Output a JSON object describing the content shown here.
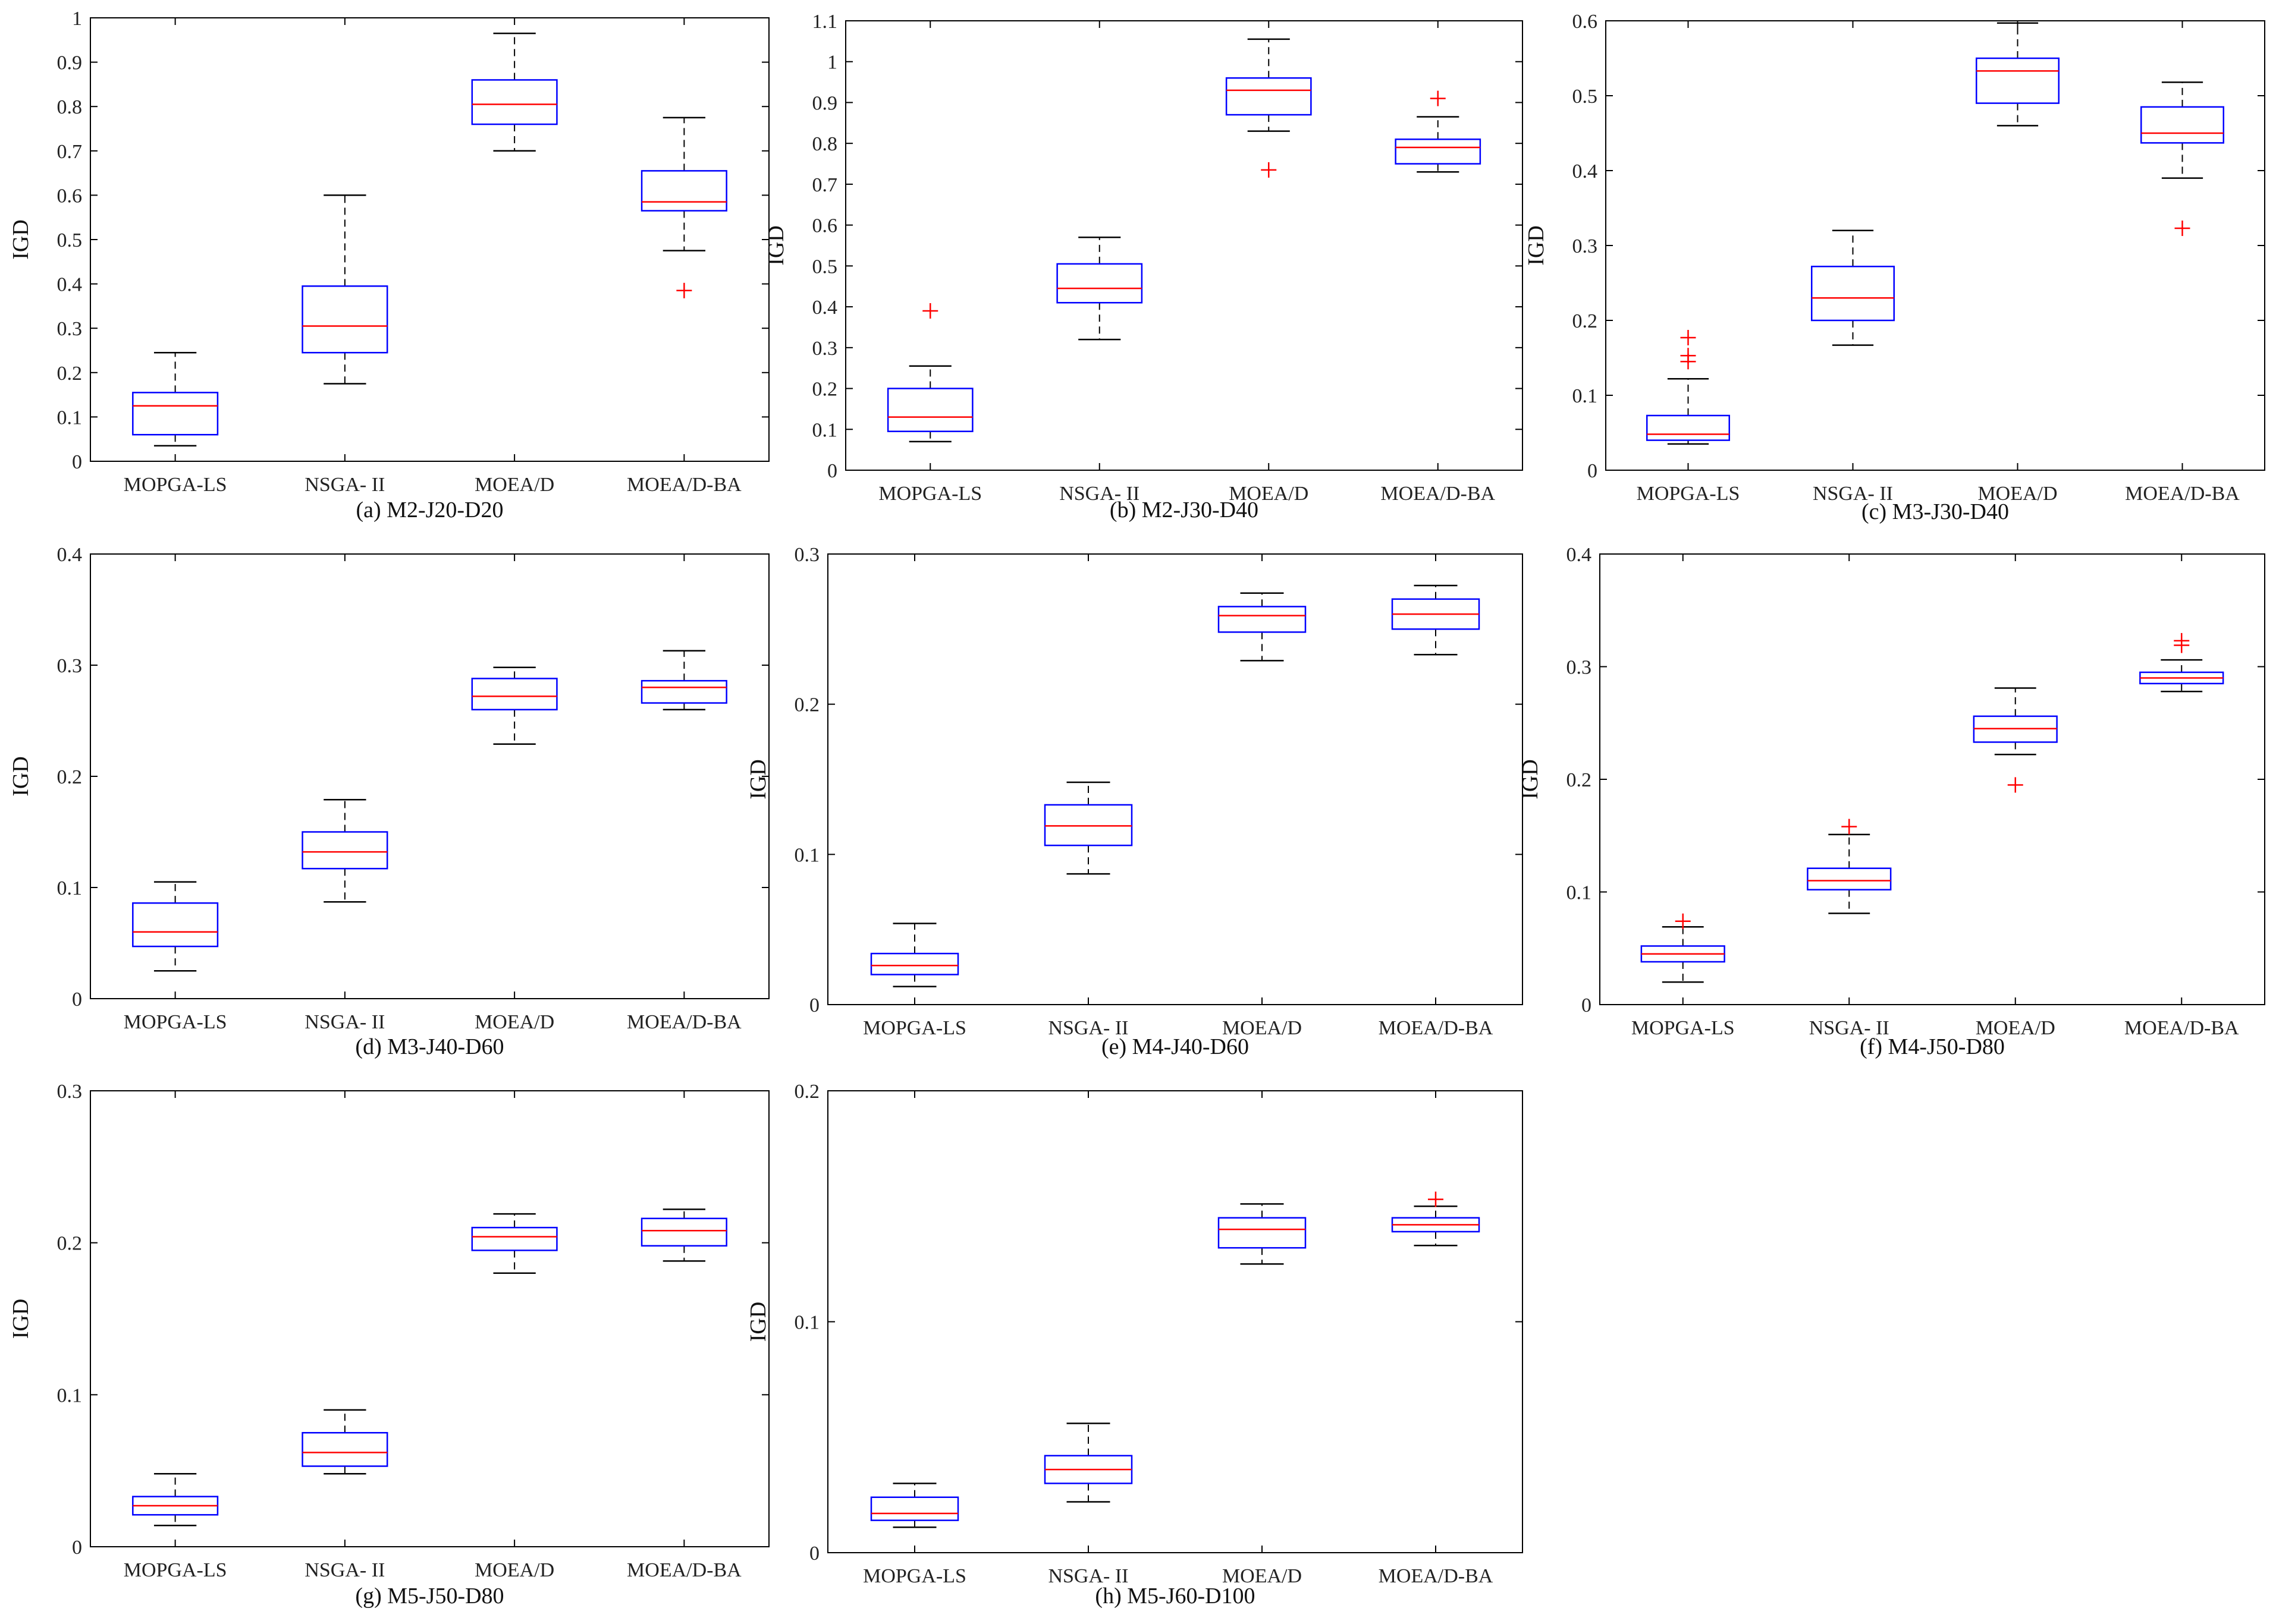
{
  "figure": {
    "ylabel": "IGD"
  },
  "colors": {
    "box": "#0000ff",
    "median": "#ff0000",
    "outlier": "#ff0000",
    "whisker": "#000000",
    "axis": "#000000"
  },
  "chart_data": [
    {
      "type": "boxplot",
      "caption": "(a)  M2-J20-D20",
      "ylabel": "IGD",
      "ylim": [
        0,
        1
      ],
      "yticks": [
        "0",
        "0.1",
        "0.2",
        "0.3",
        "0.4",
        "0.5",
        "0.6",
        "0.7",
        "0.8",
        "0.9",
        "1"
      ],
      "categories": [
        "MOPGA-LS",
        "NSGA- II",
        "MOEA/D",
        "MOEA/D-BA"
      ],
      "series": [
        {
          "name": "MOPGA-LS",
          "min": 0.035,
          "q1": 0.06,
          "median": 0.125,
          "q3": 0.155,
          "max": 0.245,
          "outliers": []
        },
        {
          "name": "NSGA- II",
          "min": 0.175,
          "q1": 0.245,
          "median": 0.305,
          "q3": 0.395,
          "max": 0.6,
          "outliers": []
        },
        {
          "name": "MOEA/D",
          "min": 0.7,
          "q1": 0.76,
          "median": 0.805,
          "q3": 0.86,
          "max": 0.965,
          "outliers": []
        },
        {
          "name": "MOEA/D-BA",
          "min": 0.475,
          "q1": 0.565,
          "median": 0.585,
          "q3": 0.655,
          "max": 0.775,
          "outliers": [
            0.385
          ]
        }
      ]
    },
    {
      "type": "boxplot",
      "caption": "(b)  M2-J30-D40",
      "ylabel": "IGD",
      "ylim": [
        0,
        1.1
      ],
      "yticks": [
        "0",
        "0.1",
        "0.2",
        "0.3",
        "0.4",
        "0.5",
        "0.6",
        "0.7",
        "0.8",
        "0.9",
        "1",
        "1.1"
      ],
      "categories": [
        "MOPGA-LS",
        "NSGA- II",
        "MOEA/D",
        "MOEA/D-BA"
      ],
      "series": [
        {
          "name": "MOPGA-LS",
          "min": 0.07,
          "q1": 0.095,
          "median": 0.13,
          "q3": 0.2,
          "max": 0.255,
          "outliers": [
            0.39
          ]
        },
        {
          "name": "NSGA- II",
          "min": 0.32,
          "q1": 0.41,
          "median": 0.445,
          "q3": 0.505,
          "max": 0.57,
          "outliers": []
        },
        {
          "name": "MOEA/D",
          "min": 0.83,
          "q1": 0.87,
          "median": 0.93,
          "q3": 0.96,
          "max": 1.055,
          "outliers": [
            0.735
          ]
        },
        {
          "name": "MOEA/D-BA",
          "min": 0.73,
          "q1": 0.75,
          "median": 0.79,
          "q3": 0.81,
          "max": 0.865,
          "outliers": [
            0.91
          ]
        }
      ]
    },
    {
      "type": "boxplot",
      "caption": "(c)  M3-J30-D40",
      "ylabel": "IGD",
      "ylim": [
        0,
        0.6
      ],
      "yticks": [
        "0",
        "0.1",
        "0.2",
        "0.3",
        "0.4",
        "0.5",
        "0.6"
      ],
      "categories": [
        "MOPGA-LS",
        "NSGA- II",
        "MOEA/D",
        "MOEA/D-BA"
      ],
      "series": [
        {
          "name": "MOPGA-LS",
          "min": 0.035,
          "q1": 0.04,
          "median": 0.048,
          "q3": 0.073,
          "max": 0.122,
          "outliers": [
            0.145,
            0.153,
            0.177
          ]
        },
        {
          "name": "NSGA- II",
          "min": 0.167,
          "q1": 0.2,
          "median": 0.23,
          "q3": 0.272,
          "max": 0.32,
          "outliers": []
        },
        {
          "name": "MOEA/D",
          "min": 0.46,
          "q1": 0.49,
          "median": 0.533,
          "q3": 0.55,
          "max": 0.597,
          "outliers": []
        },
        {
          "name": "MOEA/D-BA",
          "min": 0.39,
          "q1": 0.437,
          "median": 0.45,
          "q3": 0.485,
          "max": 0.518,
          "outliers": [
            0.323
          ]
        }
      ]
    },
    {
      "type": "boxplot",
      "caption": "(d)  M3-J40-D60",
      "ylabel": "IGD",
      "ylim": [
        0,
        0.4
      ],
      "yticks": [
        "0",
        "0.1",
        "0.2",
        "0.3",
        "0.4"
      ],
      "categories": [
        "MOPGA-LS",
        "NSGA- II",
        "MOEA/D",
        "MOEA/D-BA"
      ],
      "series": [
        {
          "name": "MOPGA-LS",
          "min": 0.025,
          "q1": 0.047,
          "median": 0.06,
          "q3": 0.086,
          "max": 0.105,
          "outliers": []
        },
        {
          "name": "NSGA- II",
          "min": 0.087,
          "q1": 0.117,
          "median": 0.132,
          "q3": 0.15,
          "max": 0.179,
          "outliers": []
        },
        {
          "name": "MOEA/D",
          "min": 0.229,
          "q1": 0.26,
          "median": 0.272,
          "q3": 0.288,
          "max": 0.298,
          "outliers": []
        },
        {
          "name": "MOEA/D-BA",
          "min": 0.26,
          "q1": 0.266,
          "median": 0.28,
          "q3": 0.286,
          "max": 0.313,
          "outliers": []
        }
      ]
    },
    {
      "type": "boxplot",
      "caption": "(e)  M4-J40-D60",
      "ylabel": "IGD",
      "ylim": [
        0,
        0.3
      ],
      "yticks": [
        "0",
        "0.1",
        "0.2",
        "0.3"
      ],
      "categories": [
        "MOPGA-LS",
        "NSGA- II",
        "MOEA/D",
        "MOEA/D-BA"
      ],
      "series": [
        {
          "name": "MOPGA-LS",
          "min": 0.012,
          "q1": 0.02,
          "median": 0.026,
          "q3": 0.034,
          "max": 0.054,
          "outliers": []
        },
        {
          "name": "NSGA- II",
          "min": 0.087,
          "q1": 0.106,
          "median": 0.119,
          "q3": 0.133,
          "max": 0.148,
          "outliers": []
        },
        {
          "name": "MOEA/D",
          "min": 0.229,
          "q1": 0.248,
          "median": 0.259,
          "q3": 0.265,
          "max": 0.274,
          "outliers": []
        },
        {
          "name": "MOEA/D-BA",
          "min": 0.233,
          "q1": 0.25,
          "median": 0.26,
          "q3": 0.27,
          "max": 0.279,
          "outliers": []
        }
      ]
    },
    {
      "type": "boxplot",
      "caption": "(f)  M4-J50-D80",
      "ylabel": "IGD",
      "ylim": [
        0,
        0.4
      ],
      "yticks": [
        "0",
        "0.1",
        "0.2",
        "0.3",
        "0.4"
      ],
      "categories": [
        "MOPGA-LS",
        "NSGA- II",
        "MOEA/D",
        "MOEA/D-BA"
      ],
      "series": [
        {
          "name": "MOPGA-LS",
          "min": 0.02,
          "q1": 0.038,
          "median": 0.045,
          "q3": 0.052,
          "max": 0.069,
          "outliers": [
            0.074
          ]
        },
        {
          "name": "NSGA- II",
          "min": 0.081,
          "q1": 0.102,
          "median": 0.11,
          "q3": 0.121,
          "max": 0.151,
          "outliers": [
            0.158
          ]
        },
        {
          "name": "MOEA/D",
          "min": 0.222,
          "q1": 0.233,
          "median": 0.245,
          "q3": 0.256,
          "max": 0.281,
          "outliers": [
            0.195
          ]
        },
        {
          "name": "MOEA/D-BA",
          "min": 0.278,
          "q1": 0.285,
          "median": 0.29,
          "q3": 0.295,
          "max": 0.306,
          "outliers": [
            0.319,
            0.323
          ]
        }
      ]
    },
    {
      "type": "boxplot",
      "caption": "(g)  M5-J50-D80",
      "ylabel": "IGD",
      "ylim": [
        0,
        0.3
      ],
      "yticks": [
        "0",
        "0.1",
        "0.2",
        "0.3"
      ],
      "categories": [
        "MOPGA-LS",
        "NSGA- II",
        "MOEA/D",
        "MOEA/D-BA"
      ],
      "series": [
        {
          "name": "MOPGA-LS",
          "min": 0.014,
          "q1": 0.021,
          "median": 0.027,
          "q3": 0.033,
          "max": 0.048,
          "outliers": []
        },
        {
          "name": "NSGA- II",
          "min": 0.048,
          "q1": 0.053,
          "median": 0.062,
          "q3": 0.075,
          "max": 0.09,
          "outliers": []
        },
        {
          "name": "MOEA/D",
          "min": 0.18,
          "q1": 0.195,
          "median": 0.204,
          "q3": 0.21,
          "max": 0.219,
          "outliers": []
        },
        {
          "name": "MOEA/D-BA",
          "min": 0.188,
          "q1": 0.198,
          "median": 0.208,
          "q3": 0.216,
          "max": 0.222,
          "outliers": []
        }
      ]
    },
    {
      "type": "boxplot",
      "caption": "(h)  M5-J60-D100",
      "ylabel": "IGD",
      "ylim": [
        0,
        0.2
      ],
      "yticks": [
        "0",
        "0.1",
        "0.2"
      ],
      "categories": [
        "MOPGA-LS",
        "NSGA- II",
        "MOEA/D",
        "MOEA/D-BA"
      ],
      "series": [
        {
          "name": "MOPGA-LS",
          "min": 0.011,
          "q1": 0.014,
          "median": 0.017,
          "q3": 0.024,
          "max": 0.03,
          "outliers": []
        },
        {
          "name": "NSGA- II",
          "min": 0.022,
          "q1": 0.03,
          "median": 0.036,
          "q3": 0.042,
          "max": 0.056,
          "outliers": []
        },
        {
          "name": "MOEA/D",
          "min": 0.125,
          "q1": 0.132,
          "median": 0.14,
          "q3": 0.145,
          "max": 0.151,
          "outliers": []
        },
        {
          "name": "MOEA/D-BA",
          "min": 0.133,
          "q1": 0.139,
          "median": 0.142,
          "q3": 0.145,
          "max": 0.15,
          "outliers": [
            0.153
          ]
        }
      ]
    }
  ]
}
